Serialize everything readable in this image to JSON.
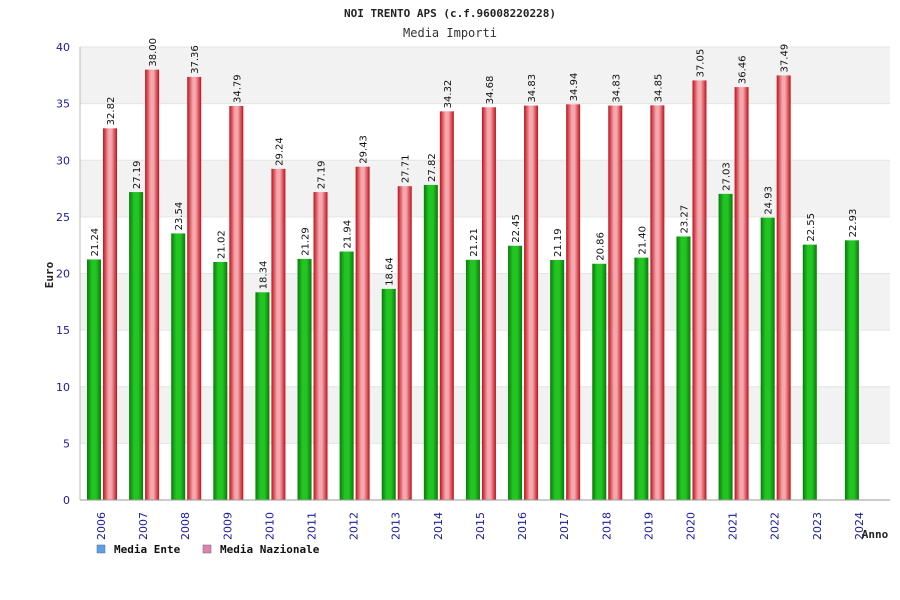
{
  "colors": {
    "ente": "#18b018",
    "nazionale": "#e8212c",
    "legend_ente": "#5aa0e8",
    "legend_nazionale": "#e080b0",
    "band": "#f2f2f2",
    "axis_text": "#1a1aa0"
  },
  "chart_data": {
    "type": "bar",
    "title": "NOI TRENTO APS (c.f.96008220228)",
    "subtitle": "Media Importi",
    "xlabel": "Anno",
    "ylabel": "Euro",
    "ylim": [
      0,
      40
    ],
    "yticks": [
      "0",
      "5",
      "10",
      "15",
      "20",
      "25",
      "30",
      "35",
      "40"
    ],
    "grid": "horizontal bands",
    "legend_position": "bottom-left",
    "categories": [
      "2006",
      "2007",
      "2008",
      "2009",
      "2010",
      "2011",
      "2012",
      "2013",
      "2014",
      "2015",
      "2016",
      "2017",
      "2018",
      "2019",
      "2020",
      "2021",
      "2022",
      "2023",
      "2024"
    ],
    "series": [
      {
        "name": "Media Ente",
        "values": [
          21.24,
          27.19,
          23.54,
          21.02,
          18.34,
          21.29,
          21.94,
          18.64,
          27.82,
          21.21,
          22.45,
          21.19,
          20.86,
          21.4,
          23.27,
          27.03,
          24.93,
          22.55,
          22.93
        ],
        "labels": [
          "21.24",
          "27.19",
          "23.54",
          "21.02",
          "18.34",
          "21.29",
          "21.94",
          "18.64",
          "27.82",
          "21.21",
          "22.45",
          "21.19",
          "20.86",
          "21.40",
          "23.27",
          "27.03",
          "24.93",
          "22.55",
          "22.93"
        ]
      },
      {
        "name": "Media Nazionale",
        "values": [
          32.82,
          38.0,
          37.36,
          34.79,
          29.24,
          27.19,
          29.43,
          27.71,
          34.32,
          34.68,
          34.83,
          34.94,
          34.83,
          34.85,
          37.05,
          36.46,
          37.49,
          null,
          null
        ],
        "labels": [
          "32.82",
          "38.00",
          "37.36",
          "34.79",
          "29.24",
          "27.19",
          "29.43",
          "27.71",
          "34.32",
          "34.68",
          "34.83",
          "34.94",
          "34.83",
          "34.85",
          "37.05",
          "36.46",
          "37.49",
          "",
          ""
        ]
      }
    ]
  }
}
